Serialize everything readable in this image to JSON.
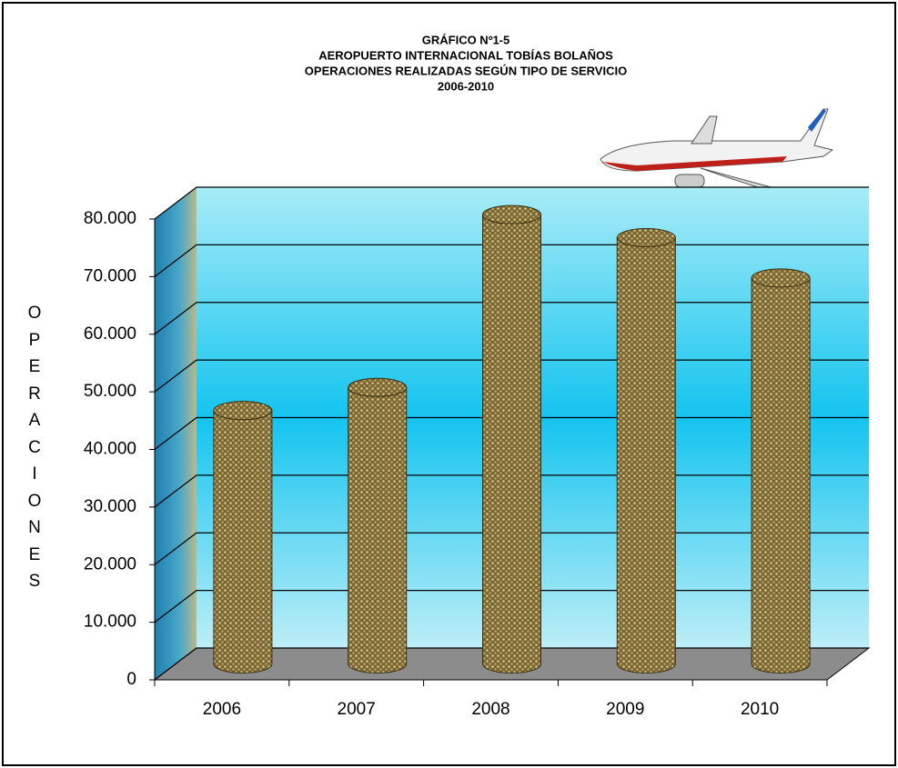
{
  "chart_data": {
    "type": "bar",
    "title": [
      "GRÁFICO Nº1-5",
      "AEROPUERTO INTERNACIONAL TOBÍAS BOLAÑOS",
      "OPERACIONES REALIZADAS SEGÚN TIPO DE SERVICIO",
      "2006-2010"
    ],
    "y_label": "OPERACIONES",
    "categories": [
      "2006",
      "2007",
      "2008",
      "2009",
      "2010"
    ],
    "values": [
      44000,
      48000,
      78000,
      74000,
      67000
    ],
    "color": "#8a7440",
    "ylim": [
      0,
      80000
    ],
    "yticks": [
      0,
      {
        "value": 10000,
        "label": "10.000"
      },
      {
        "value": 20000,
        "label": "20.000"
      },
      {
        "value": 30000,
        "label": "30.000"
      },
      {
        "value": 40000,
        "label": "40.000"
      },
      {
        "value": 50000,
        "label": "50.000"
      },
      {
        "value": 60000,
        "label": "60.000"
      },
      {
        "value": 70000,
        "label": "70.000"
      },
      {
        "value": 80000,
        "label": "80.000"
      }
    ],
    "grid": true
  }
}
